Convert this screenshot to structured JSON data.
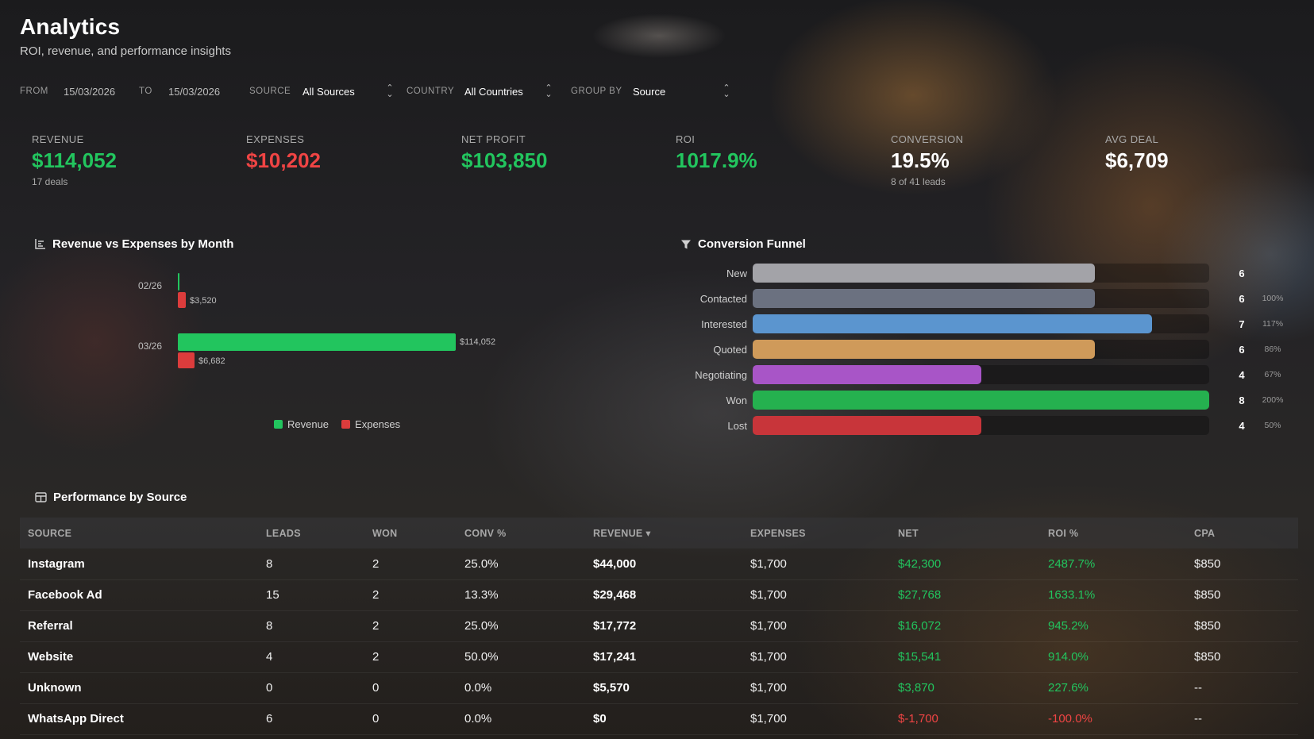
{
  "header": {
    "title": "Analytics",
    "subtitle": "ROI, revenue, and performance insights"
  },
  "filters": {
    "from_label": "FROM",
    "from_value": "15/03/2026",
    "to_label": "TO",
    "to_value": "15/03/2026",
    "source_label": "SOURCE",
    "source_value": "All Sources",
    "country_label": "COUNTRY",
    "country_value": "All Countries",
    "group_label": "GROUP BY",
    "group_value": "Source"
  },
  "kpis": [
    {
      "label": "REVENUE",
      "value": "$114,052",
      "sub": "17 deals",
      "color": "#22c55e"
    },
    {
      "label": "EXPENSES",
      "value": "$10,202",
      "sub": "",
      "color": "#ef4444"
    },
    {
      "label": "NET PROFIT",
      "value": "$103,850",
      "sub": "",
      "color": "#22c55e"
    },
    {
      "label": "ROI",
      "value": "1017.9%",
      "sub": "",
      "color": "#22c55e"
    },
    {
      "label": "CONVERSION",
      "value": "19.5%",
      "sub": "8 of 41 leads",
      "color": "#ffffff"
    },
    {
      "label": "AVG DEAL",
      "value": "$6,709",
      "sub": "",
      "color": "#ffffff"
    }
  ],
  "revenue_chart": {
    "title": "Revenue vs Expenses by Month",
    "legend_revenue": "Revenue",
    "legend_expenses": "Expenses",
    "colors": {
      "revenue": "#22c55e",
      "expenses": "#dc3c3c"
    }
  },
  "chart_data": {
    "type": "bar",
    "orientation": "horizontal",
    "title": "Revenue vs Expenses by Month",
    "categories": [
      "02/26",
      "03/26"
    ],
    "series": [
      {
        "name": "Revenue",
        "values": [
          0,
          114052
        ],
        "labels": [
          "",
          "$114,052"
        ]
      },
      {
        "name": "Expenses",
        "values": [
          3520,
          6682
        ],
        "labels": [
          "$3,520",
          "$6,682"
        ]
      }
    ],
    "xlim": [
      0,
      114052
    ],
    "legend": "bottom-center",
    "grid": false
  },
  "funnel": {
    "title": "Conversion Funnel",
    "max": 8,
    "stages": [
      {
        "label": "New",
        "count": "6",
        "value": 6,
        "pct": "",
        "color": "#a3a3a8"
      },
      {
        "label": "Contacted",
        "count": "6",
        "value": 6,
        "pct": "100%",
        "color": "#6b7180"
      },
      {
        "label": "Interested",
        "count": "7",
        "value": 7,
        "pct": "117%",
        "color": "#5b95cf"
      },
      {
        "label": "Quoted",
        "count": "6",
        "value": 6,
        "pct": "86%",
        "color": "#cf9a5a"
      },
      {
        "label": "Negotiating",
        "count": "4",
        "value": 4,
        "pct": "67%",
        "color": "#a855c7"
      },
      {
        "label": "Won",
        "count": "8",
        "value": 8,
        "pct": "200%",
        "color": "#25b14f"
      },
      {
        "label": "Lost",
        "count": "4",
        "value": 4,
        "pct": "50%",
        "color": "#c8353a"
      }
    ]
  },
  "performance": {
    "title": "Performance by Source",
    "columns": [
      "SOURCE",
      "LEADS",
      "WON",
      "CONV %",
      "REVENUE ▾",
      "EXPENSES",
      "NET",
      "ROI %",
      "CPA"
    ],
    "rows": [
      {
        "source": "Instagram",
        "leads": "8",
        "won": "2",
        "conv": "25.0%",
        "revenue": "$44,000",
        "expenses": "$1,700",
        "net": "$42,300",
        "roi": "2487.7%",
        "cpa": "$850",
        "positive": true
      },
      {
        "source": "Facebook Ad",
        "leads": "15",
        "won": "2",
        "conv": "13.3%",
        "revenue": "$29,468",
        "expenses": "$1,700",
        "net": "$27,768",
        "roi": "1633.1%",
        "cpa": "$850",
        "positive": true
      },
      {
        "source": "Referral",
        "leads": "8",
        "won": "2",
        "conv": "25.0%",
        "revenue": "$17,772",
        "expenses": "$1,700",
        "net": "$16,072",
        "roi": "945.2%",
        "cpa": "$850",
        "positive": true
      },
      {
        "source": "Website",
        "leads": "4",
        "won": "2",
        "conv": "50.0%",
        "revenue": "$17,241",
        "expenses": "$1,700",
        "net": "$15,541",
        "roi": "914.0%",
        "cpa": "$850",
        "positive": true
      },
      {
        "source": "Unknown",
        "leads": "0",
        "won": "0",
        "conv": "0.0%",
        "revenue": "$5,570",
        "expenses": "$1,700",
        "net": "$3,870",
        "roi": "227.6%",
        "cpa": "--",
        "positive": true
      },
      {
        "source": "WhatsApp Direct",
        "leads": "6",
        "won": "0",
        "conv": "0.0%",
        "revenue": "$0",
        "expenses": "$1,700",
        "net": "$-1,700",
        "roi": "-100.0%",
        "cpa": "--",
        "positive": false
      }
    ]
  }
}
